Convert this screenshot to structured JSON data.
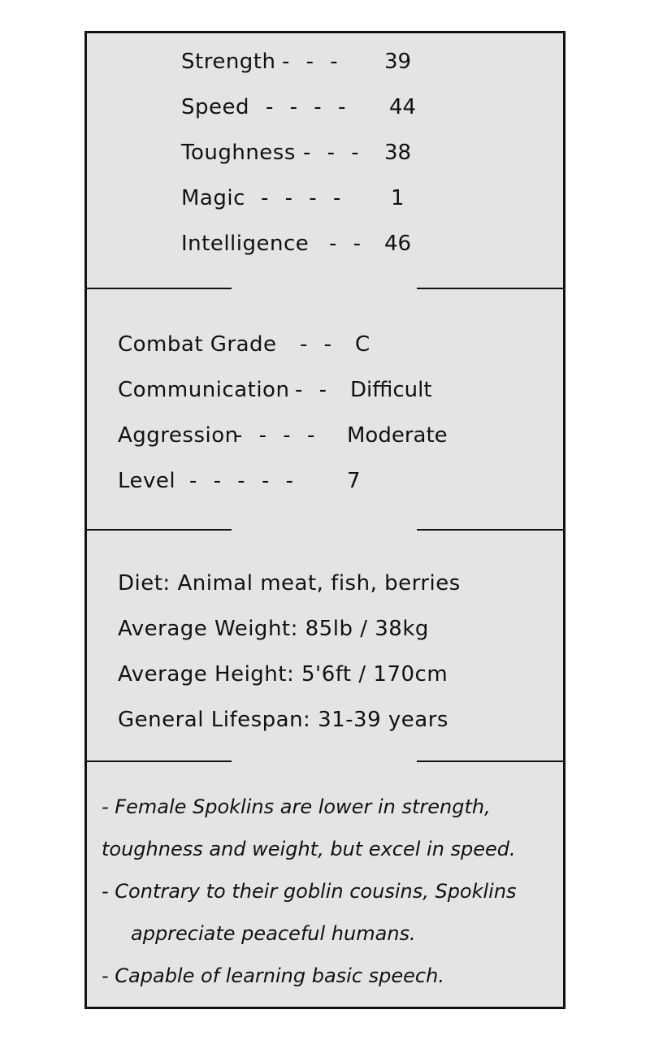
{
  "stats": [
    {
      "label": "Strength",
      "dashes": "- - -",
      "value": "39"
    },
    {
      "label": "Speed",
      "dashes": "- - - -",
      "value": "44"
    },
    {
      "label": "Toughness",
      "dashes": "- - -",
      "value": "38"
    },
    {
      "label": "Magic",
      "dashes": "- - - -",
      "value": "1"
    },
    {
      "label": "Intelligence",
      "dashes": "- -",
      "value": "46"
    }
  ],
  "traits": [
    {
      "label": "Combat Grade",
      "dashes": "- -",
      "value": "C"
    },
    {
      "label": "Communication",
      "dashes": "- -",
      "value": "Difficult"
    },
    {
      "label": "Aggression",
      "dashes": "- - - -",
      "value": "Moderate"
    },
    {
      "label": "Level",
      "dashes": "- - - - -",
      "value": "7"
    }
  ],
  "info": [
    "Diet: Animal meat, fish, berries",
    "Average Weight: 85lb / 38kg",
    "Average Height: 5'6ft / 170cm",
    "General Lifespan: 31-39 years"
  ],
  "notes": [
    "- Female Spoklins are lower in strength,",
    "toughness and weight, but excel in speed.",
    "- Contrary to their goblin cousins, Spoklins",
    "appreciate peaceful humans.",
    "- Capable of learning basic speech."
  ]
}
